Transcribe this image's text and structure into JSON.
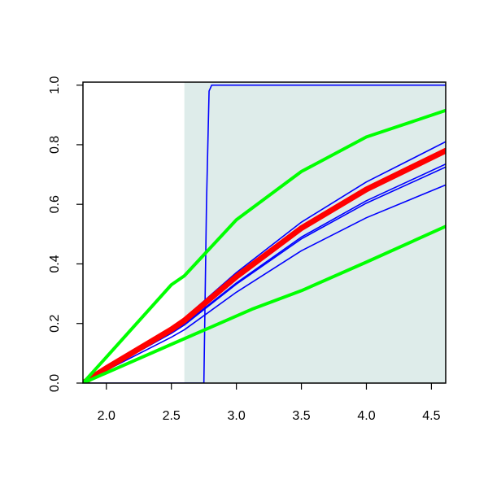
{
  "chart_data": {
    "type": "line",
    "xlim": [
      1.82,
      4.61
    ],
    "ylim": [
      0,
      1.01
    ],
    "xticks": [
      {
        "value": 2.0,
        "label": "2.0"
      },
      2.5,
      {
        "value": 3.0,
        "label": "3.0"
      },
      3.5,
      {
        "value": 4.0,
        "label": "4.0"
      },
      4.5
    ],
    "yticks": [
      {
        "value": 0.0,
        "label": "0.0"
      },
      0.2,
      0.4,
      0.6,
      0.8,
      {
        "value": 1.0,
        "label": "1.0"
      }
    ],
    "shade": {
      "xmin": 2.6,
      "color": "#deecea"
    },
    "series": [
      {
        "color": "#0000ff",
        "width": 1.6,
        "x": [
          1.82,
          2.75,
          2.77,
          2.79,
          2.81,
          4.61
        ],
        "values": [
          0,
          0,
          0.6,
          0.98,
          1.0,
          1.0
        ]
      },
      {
        "color": "#0000ff",
        "width": 1.6,
        "x": [
          1.82,
          2.0,
          2.5,
          2.6,
          3.0,
          3.5,
          4.0,
          4.61
        ],
        "values": [
          0,
          0.052,
          0.187,
          0.218,
          0.371,
          0.54,
          0.675,
          0.81
        ]
      },
      {
        "color": "#0000ff",
        "width": 1.6,
        "x": [
          1.82,
          2.0,
          2.5,
          2.6,
          3.0,
          3.5,
          4.0,
          4.61
        ],
        "values": [
          0,
          0.047,
          0.17,
          0.198,
          0.336,
          0.49,
          0.612,
          0.735
        ]
      },
      {
        "color": "#0000ff",
        "width": 1.6,
        "x": [
          1.82,
          2.0,
          2.5,
          2.6,
          3.0,
          3.5,
          4.0,
          4.61
        ],
        "values": [
          0,
          0.046,
          0.167,
          0.195,
          0.332,
          0.484,
          0.604,
          0.725
        ]
      },
      {
        "color": "#0000ff",
        "width": 1.6,
        "x": [
          1.82,
          2.0,
          2.5,
          2.6,
          3.0,
          3.5,
          4.0,
          4.61
        ],
        "values": [
          0,
          0.043,
          0.154,
          0.179,
          0.305,
          0.444,
          0.555,
          0.665
        ]
      },
      {
        "color": "#ff0000",
        "width": 7,
        "x": [
          1.82,
          2.0,
          2.5,
          2.6,
          3.0,
          3.5,
          4.0,
          4.61
        ],
        "values": [
          0,
          0.05,
          0.18,
          0.21,
          0.357,
          0.52,
          0.65,
          0.78
        ]
      },
      {
        "color": "#00ff00",
        "width": 4,
        "x": [
          1.82,
          2.0,
          2.5,
          2.6,
          3.0,
          3.5,
          4.0,
          4.61
        ],
        "values": [
          0,
          0.087,
          0.33,
          0.36,
          0.548,
          0.71,
          0.826,
          0.915
        ]
      },
      {
        "color": "#00ff00",
        "width": 4,
        "x": [
          1.82,
          2.5,
          3.0,
          3.12,
          3.5,
          4.0,
          4.61
        ],
        "values": [
          0,
          0.13,
          0.225,
          0.248,
          0.31,
          0.406,
          0.526
        ]
      }
    ]
  }
}
